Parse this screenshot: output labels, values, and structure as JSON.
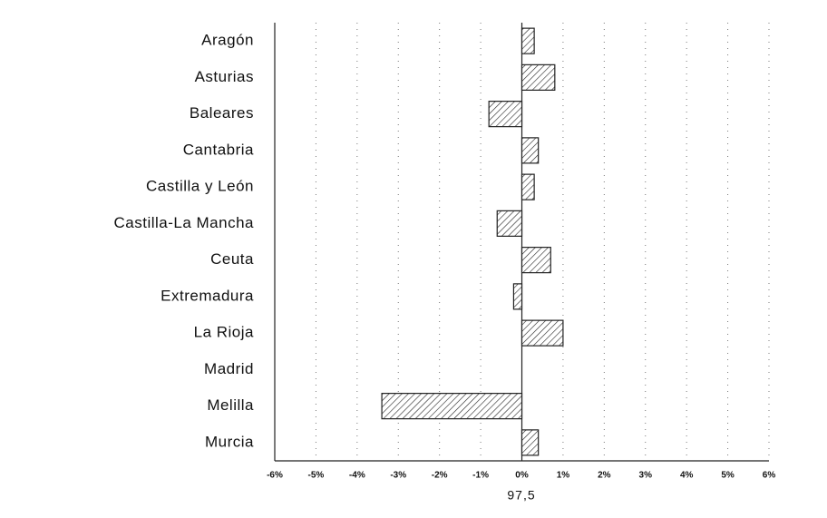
{
  "chart_data": {
    "type": "barh",
    "categories": [
      "Aragón",
      "Asturias",
      "Baleares",
      "Cantabria",
      "Castilla y León",
      "Castilla-La Mancha",
      "Ceuta",
      "Extremadura",
      "La Rioja",
      "Madrid",
      "Melilla",
      "Murcia"
    ],
    "values": [
      0.3,
      0.8,
      -0.8,
      0.4,
      0.3,
      -0.6,
      0.7,
      -0.2,
      1.0,
      0,
      -3.4,
      0.4
    ],
    "xlabel": "97,5",
    "xlim": [
      -6,
      6
    ],
    "xticks": [
      {
        "value": -6,
        "label": "-6%"
      },
      {
        "value": -5,
        "label": "-5%"
      },
      {
        "value": -4,
        "label": "-4%"
      },
      {
        "value": -3,
        "label": "-3%"
      },
      {
        "value": -2,
        "label": "-2%"
      },
      {
        "value": -1,
        "label": "-1%"
      },
      {
        "value": 0,
        "label": "0%"
      },
      {
        "value": 1,
        "label": "1%"
      },
      {
        "value": 2,
        "label": "2%"
      },
      {
        "value": 3,
        "label": "3%"
      },
      {
        "value": 4,
        "label": "4%"
      },
      {
        "value": 5,
        "label": "5%"
      },
      {
        "value": 6,
        "label": "6%"
      }
    ],
    "grid": true,
    "color": "#222222"
  }
}
